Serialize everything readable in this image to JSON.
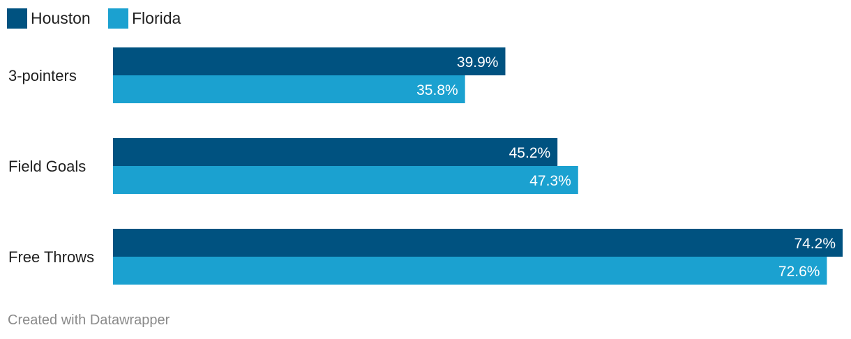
{
  "chart_data": {
    "type": "bar",
    "orientation": "horizontal",
    "categories": [
      "3-pointers",
      "Field Goals",
      "Free Throws"
    ],
    "series": [
      {
        "name": "Houston",
        "values": [
          39.9,
          45.2,
          74.2
        ],
        "labels": [
          "39.9%",
          "45.2%",
          "74.2%"
        ],
        "color": "#005280"
      },
      {
        "name": "Florida",
        "values": [
          35.8,
          47.3,
          72.6
        ],
        "labels": [
          "35.8%",
          "47.3%",
          "72.6%"
        ],
        "color": "#1ba1d0"
      }
    ],
    "xlim": [
      0,
      74.2
    ],
    "legend": "top-left",
    "grid": false
  },
  "footer": {
    "credit": "Created with Datawrapper"
  }
}
